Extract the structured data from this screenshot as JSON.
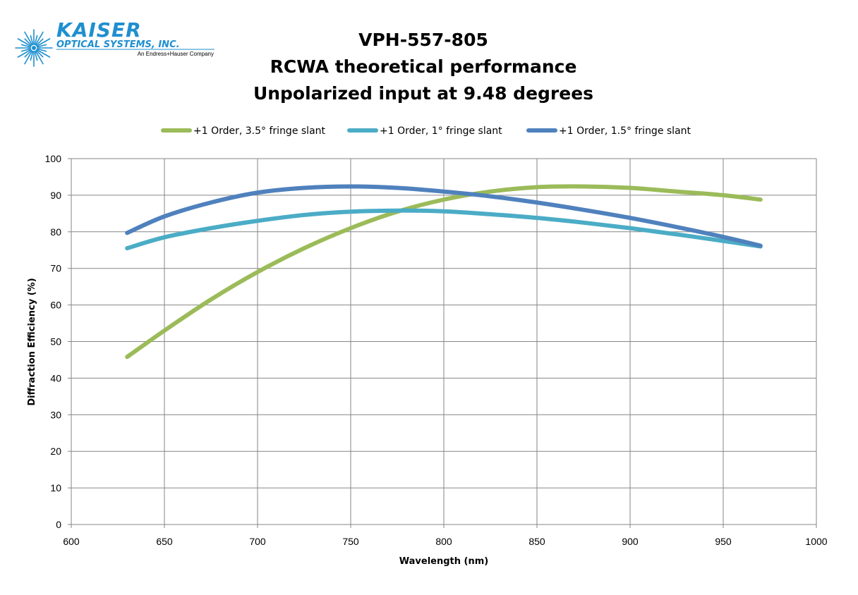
{
  "logo": {
    "name": "KAISER",
    "subtitle": "OPTICAL SYSTEMS, INC.",
    "tagline": "An Endress+Hauser Company",
    "brand_color": "#1f8fcf"
  },
  "chart_data": {
    "type": "line",
    "title_lines": [
      "VPH-557-805",
      "RCWA theoretical performance",
      "Unpolarized input at 9.48 degrees"
    ],
    "xlabel": "Wavelength (nm)",
    "ylabel": "Diffraction Efficiency (%)",
    "xlim": [
      600,
      1000
    ],
    "ylim": [
      0,
      100
    ],
    "xticks": [
      600,
      650,
      700,
      750,
      800,
      850,
      900,
      950,
      1000
    ],
    "yticks": [
      0,
      10,
      20,
      30,
      40,
      50,
      60,
      70,
      80,
      90,
      100
    ],
    "grid": true,
    "legend_position": "top",
    "x": [
      630,
      650,
      675,
      700,
      725,
      750,
      775,
      800,
      825,
      850,
      875,
      900,
      925,
      950,
      970
    ],
    "series": [
      {
        "name": "+1 Order, 3.5° fringe slant",
        "color": "#9bbb59",
        "values": [
          45.8,
          53.0,
          61.5,
          69.0,
          75.5,
          81.0,
          85.5,
          88.8,
          91.0,
          92.2,
          92.4,
          92.0,
          91.0,
          90.0,
          88.8
        ]
      },
      {
        "name": "+1 Order, 1° fringe slant",
        "color": "#4bacc6",
        "values": [
          75.5,
          78.5,
          81.0,
          83.0,
          84.6,
          85.5,
          85.8,
          85.6,
          84.8,
          83.8,
          82.5,
          81.0,
          79.3,
          77.5,
          76.0
        ]
      },
      {
        "name": "+1 Order, 1.5° fringe slant",
        "color": "#4f81bd",
        "values": [
          79.7,
          84.2,
          88.0,
          90.7,
          92.0,
          92.4,
          92.0,
          91.0,
          89.7,
          88.0,
          86.0,
          83.8,
          81.3,
          78.6,
          76.2
        ]
      }
    ]
  }
}
